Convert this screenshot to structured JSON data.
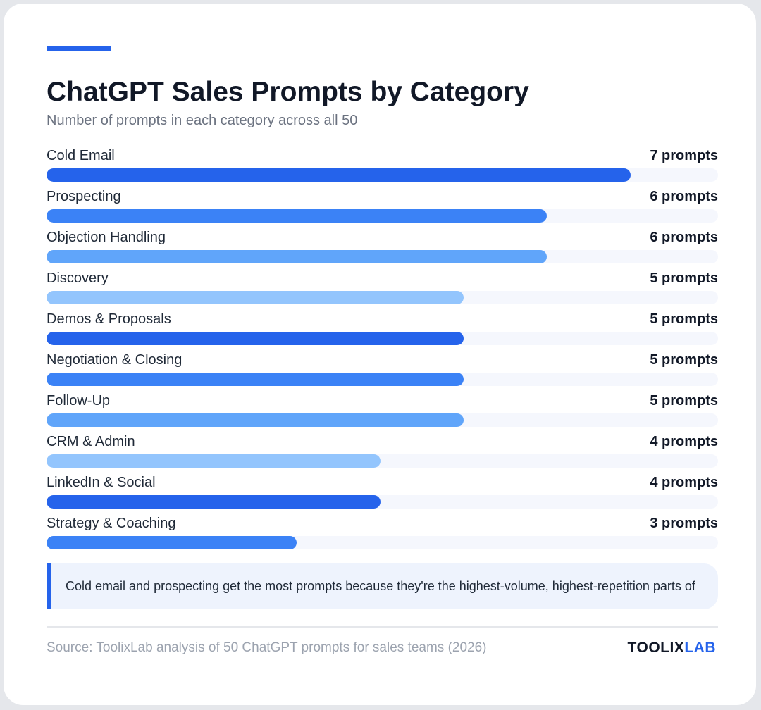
{
  "header": {
    "title": "ChatGPT Sales Prompts by Category",
    "subtitle": "Number of prompts in each category across all 50"
  },
  "colors": {
    "accent": "#2563eb",
    "track": "#f5f7fd"
  },
  "chart_data": {
    "type": "bar",
    "orientation": "horizontal",
    "title": "ChatGPT Sales Prompts by Category",
    "subtitle": "Number of prompts in each category across all 50",
    "xlim": [
      0,
      8
    ],
    "unit": "prompts",
    "grid": false,
    "legend": "none",
    "categories": [
      "Cold Email",
      "Prospecting",
      "Objection Handling",
      "Discovery",
      "Demos & Proposals",
      "Negotiation & Closing",
      "Follow-Up",
      "CRM & Admin",
      "LinkedIn & Social",
      "Strategy & Coaching"
    ],
    "values": [
      7,
      6,
      6,
      5,
      5,
      5,
      5,
      4,
      4,
      3
    ],
    "value_labels": [
      "7 prompts",
      "6 prompts",
      "6 prompts",
      "5 prompts",
      "5 prompts",
      "5 prompts",
      "5 prompts",
      "4 prompts",
      "4 prompts",
      "3 prompts"
    ],
    "bar_colors": [
      "#2563eb",
      "#3b82f6",
      "#60a5fa",
      "#93c5fd",
      "#2563eb",
      "#3b82f6",
      "#60a5fa",
      "#93c5fd",
      "#2563eb",
      "#3b82f6"
    ]
  },
  "callout": {
    "text": "Cold email and prospecting get the most prompts because they're the highest-volume, highest-repetition parts of"
  },
  "footer": {
    "source": "Source: ToolixLab analysis of 50 ChatGPT prompts for sales teams (2026)",
    "brand_part1": "TOOLIX",
    "brand_part2": "LAB"
  }
}
